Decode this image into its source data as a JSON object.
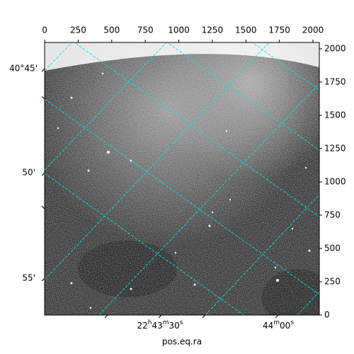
{
  "chart_data": {
    "type": "image",
    "xlabel": "pos.eq.ra",
    "xlim": [
      -0.5,
      2047.5
    ],
    "ylim": [
      -0.5,
      2047.5
    ],
    "xticks": [
      0,
      250,
      500,
      750,
      1000,
      1250,
      1500,
      1750,
      2000
    ],
    "yticks": [
      0,
      250,
      500,
      750,
      1000,
      1250,
      1500,
      1750,
      2000
    ],
    "dec_labels": [
      "40°45'",
      "50'",
      "55'"
    ],
    "ra_labels": [
      "22h43m30s",
      "44m00s"
    ],
    "grid_color": "#00e5e5"
  }
}
